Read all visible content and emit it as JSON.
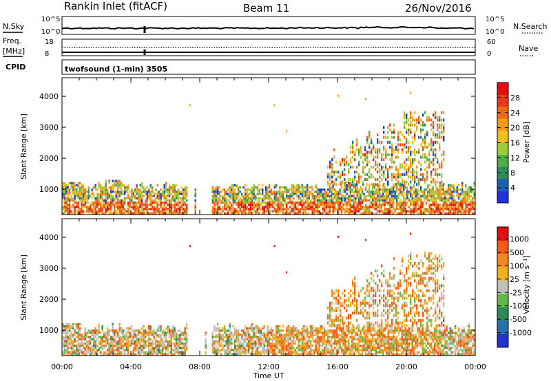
{
  "header": {
    "site": "Rankin Inlet (fitACF)",
    "beam": "Beam 11",
    "date": "26/Nov/2016"
  },
  "noise_panel": {
    "left_label": "N.Sky",
    "right_label": "N.Search",
    "left_ticks": [
      "10^5",
      "10^0"
    ],
    "right_ticks": [
      "10^5",
      "10^0"
    ]
  },
  "freq_panel": {
    "left_label_1": "Freq.",
    "left_label_2": "[MHz]",
    "right_label": "Nave",
    "left_ticks": [
      "18",
      "8"
    ],
    "right_ticks": [
      "60",
      "0"
    ]
  },
  "cpid": {
    "label": "CPID",
    "value": "twofsound (1-min) 3505"
  },
  "chart_data": [
    {
      "type": "heatmap",
      "name": "power",
      "ylabel": "Slant Range [km]",
      "yticks": [
        "4000",
        "3000",
        "2000",
        "1000"
      ],
      "ylim": [
        180,
        4600
      ],
      "xlim": [
        0,
        24
      ],
      "colorbar_label": "Power [dB]",
      "colorbar_ticks": [
        "28",
        "24",
        "20",
        "16",
        "12",
        "8",
        "4"
      ],
      "colors": [
        "#2233dd",
        "#1f5fb0",
        "#2f8a5a",
        "#4fae4a",
        "#9ccd3a",
        "#f0c020",
        "#f59a20",
        "#f06a15",
        "#e83a18",
        "#e01010"
      ]
    },
    {
      "type": "heatmap",
      "name": "velocity",
      "ylabel": "Slant Range [km]",
      "yticks": [
        "4000",
        "3000",
        "2000",
        "1000"
      ],
      "ylim": [
        180,
        4600
      ],
      "xlim": [
        0,
        24
      ],
      "colorbar_label": "Velocity  [m s⁻¹]",
      "colorbar_ticks": [
        "1000",
        "500",
        "100",
        "25",
        "-25",
        "-100",
        "-500",
        "-1000"
      ],
      "colors": [
        "#2233cc",
        "#2a6fb0",
        "#2f8a5a",
        "#5fb845",
        "#c0c0c0",
        "#f0b020",
        "#f08a20",
        "#f05a15",
        "#e01010"
      ]
    }
  ],
  "xaxis": {
    "ticks": [
      "00:00",
      "04:00",
      "08:00",
      "12:00",
      "16:00",
      "20:00",
      "00:00"
    ],
    "label": "Time UT"
  }
}
